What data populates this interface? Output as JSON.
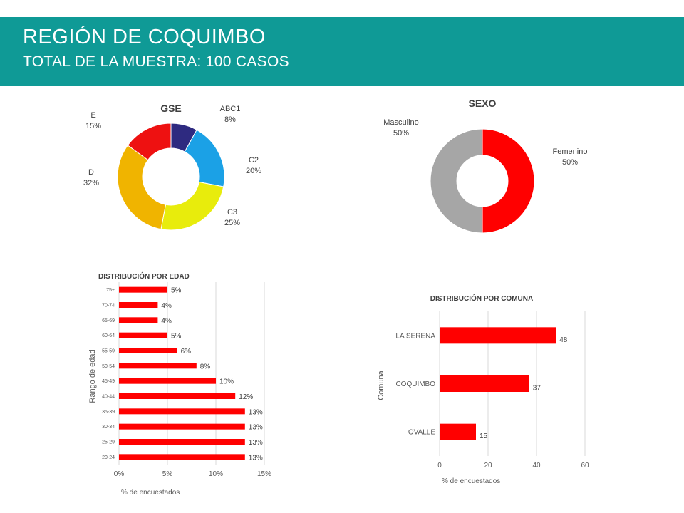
{
  "header": {
    "title": "REGIÓN DE COQUIMBO",
    "subtitle": "TOTAL DE LA MUESTRA: 100 CASOS"
  },
  "colors": {
    "header_bg": "#0f9a96",
    "bar": "#ff0000"
  },
  "chart_data": [
    {
      "type": "pie",
      "title": "GSE",
      "slices": [
        {
          "label": "ABC1",
          "value": 8,
          "value_label": "8%",
          "color": "#2e2a80"
        },
        {
          "label": "C2",
          "value": 20,
          "value_label": "20%",
          "color": "#1ba1e6"
        },
        {
          "label": "C3",
          "value": 25,
          "value_label": "25%",
          "color": "#e8ec0c"
        },
        {
          "label": "D",
          "value": 32,
          "value_label": "32%",
          "color": "#f0b400"
        },
        {
          "label": "E",
          "value": 15,
          "value_label": "15%",
          "color": "#ee1111"
        }
      ]
    },
    {
      "type": "pie",
      "title": "SEXO",
      "slices": [
        {
          "label": "Femenino",
          "value": 50,
          "value_label": "50%",
          "color": "#ff0000"
        },
        {
          "label": "Masculino",
          "value": 50,
          "value_label": "50%",
          "color": "#a6a6a6"
        }
      ]
    },
    {
      "type": "bar",
      "orientation": "horizontal",
      "title": "DISTRIBUCIÓN POR EDAD",
      "xlabel": "% de encuestados",
      "ylabel": "Rango de edad",
      "categories": [
        "75+",
        "70-74",
        "65-69",
        "60-64",
        "55-59",
        "50-54",
        "45-49",
        "40-44",
        "35-39",
        "30-34",
        "25-29",
        "20-24"
      ],
      "values": [
        5,
        4,
        4,
        5,
        6,
        8,
        10,
        12,
        13,
        13,
        13,
        13
      ],
      "value_labels": [
        "5%",
        "4%",
        "4%",
        "5%",
        "6%",
        "8%",
        "10%",
        "12%",
        "13%",
        "13%",
        "13%",
        "13%"
      ],
      "xlim": [
        0,
        15
      ],
      "xticks": [
        "0%",
        "5%",
        "10%",
        "15%"
      ],
      "grid": true
    },
    {
      "type": "bar",
      "orientation": "horizontal",
      "title": "DISTRIBUCIÓN POR COMUNA",
      "xlabel": "% de encuestados",
      "ylabel": "Comuna",
      "categories": [
        "LA SERENA",
        "COQUIMBO",
        "OVALLE"
      ],
      "values": [
        48,
        37,
        15
      ],
      "value_labels": [
        "48",
        "37",
        "15"
      ],
      "xlim": [
        0,
        60
      ],
      "xticks": [
        "0",
        "20",
        "40",
        "60"
      ],
      "grid": true
    }
  ]
}
